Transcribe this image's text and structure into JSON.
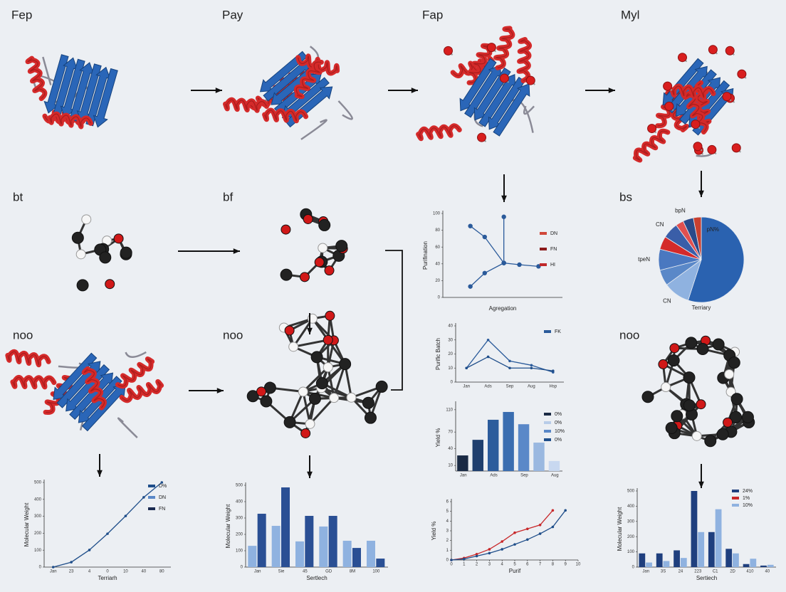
{
  "panels": [
    {
      "label": "Fep"
    },
    {
      "label": "Pay"
    },
    {
      "label": "Fap"
    },
    {
      "label": "Myl"
    },
    {
      "label": "bt"
    },
    {
      "label": "bf"
    },
    {
      "label": "bs"
    },
    {
      "label": "noo"
    },
    {
      "label": "noo"
    },
    {
      "label": "noo"
    }
  ],
  "charts": [
    {
      "type": "line",
      "y_label": "Purifination",
      "x_label": "Agregation",
      "xlim": [
        0,
        10
      ],
      "ylim": [
        0,
        100
      ],
      "yticks": [
        0,
        20,
        40,
        60,
        80,
        100
      ],
      "series": [
        {
          "name": "DN",
          "color": "#2a5a9a",
          "legend_color": "#d0473a",
          "x": [
            2.3,
            3.5,
            5.1,
            6.4,
            8.0
          ],
          "values": [
            85,
            72,
            41,
            39,
            37
          ]
        },
        {
          "name": "FN",
          "color": "#2a5a9a",
          "legend_color": "#8b1a1a",
          "x": [
            2.3,
            3.5,
            5.1
          ],
          "values": [
            13,
            29,
            41
          ]
        },
        {
          "name": "HI",
          "color": "#2a5a9a",
          "legend_color": "#c0282a",
          "x": [
            5.1,
            5.1
          ],
          "values": [
            96,
            41
          ]
        }
      ]
    },
    {
      "type": "line",
      "y_label": "Purific Batch",
      "categories": [
        "Jan",
        "Ads",
        "Sep",
        "Aug",
        "Hsp"
      ],
      "ylim": [
        0,
        40
      ],
      "yticks": [
        0,
        10,
        20,
        30,
        40
      ],
      "series": [
        {
          "name": "FK",
          "color": "#2a5a9a",
          "values": [
            10,
            30,
            15,
            12,
            7
          ]
        },
        {
          "color": "#1f4e8a",
          "values": [
            10,
            18,
            10,
            10,
            8
          ]
        }
      ]
    },
    {
      "type": "bar",
      "y_label": "Yield %",
      "categories": [
        "Jan",
        null,
        "Ads",
        null,
        "Sep",
        null,
        "Aug"
      ],
      "ylim": [
        0,
        120
      ],
      "yticks": [
        10,
        40,
        70,
        110
      ],
      "series": [
        {
          "values": [
            28,
            56,
            92,
            106,
            84,
            51,
            18
          ],
          "colors": [
            "#1a2a44",
            "#1f3f6e",
            "#2c5c9c",
            "#3a6db0",
            "#5a88c8",
            "#9ab8e0",
            "#c8d8f0"
          ]
        }
      ],
      "legend": [
        {
          "name": "0%",
          "color": "#1a2a44"
        },
        {
          "name": "0%",
          "color": "#b8cce8"
        },
        {
          "name": "10%",
          "color": "#5a88c8"
        },
        {
          "name": "0%",
          "color": "#1f4e8a"
        }
      ]
    },
    {
      "type": "line",
      "y_label": "Yield %",
      "x_label": "Purif",
      "xlim": [
        0,
        10
      ],
      "xticks": [
        0,
        1,
        2,
        3,
        4,
        5,
        6,
        7,
        8,
        9,
        10
      ],
      "ylim": [
        0,
        6
      ],
      "yticks": [
        0,
        1,
        2,
        3,
        4,
        5,
        6
      ],
      "series": [
        {
          "color": "#c8282a",
          "x": [
            0,
            1,
            2,
            3,
            4,
            5,
            6,
            7,
            8
          ],
          "values": [
            0,
            0.2,
            0.6,
            1.1,
            1.9,
            2.8,
            3.2,
            3.6,
            5.1
          ]
        },
        {
          "color": "#1f4e8a",
          "x": [
            0,
            1,
            2,
            3,
            4,
            5,
            6,
            7,
            8,
            9
          ],
          "values": [
            0,
            0.1,
            0.4,
            0.7,
            1.1,
            1.6,
            2.1,
            2.7,
            3.4,
            5.1
          ]
        }
      ]
    },
    {
      "type": "pie",
      "title": "Terriary",
      "categories": [
        "pN%",
        "CN",
        null,
        "tpeN",
        null,
        "CN",
        null,
        "bpN",
        null
      ],
      "values": [
        55,
        10,
        6,
        8,
        5,
        6,
        3,
        4,
        3
      ],
      "colors": [
        "#2a62b0",
        "#8fb2e0",
        "#5a88c8",
        "#4a78c0",
        "#d42a2a",
        "#3a5ea8",
        "#e05050",
        "#2a4a8a",
        "#c84030"
      ]
    },
    {
      "type": "line",
      "y_label": "Molecular Weight",
      "x_label": "Terriarh",
      "categories": [
        "Jan",
        "23",
        "4",
        "0",
        "10",
        "40",
        "80"
      ],
      "ylim": [
        0,
        500
      ],
      "yticks": [
        0,
        100,
        200,
        300,
        400,
        500
      ],
      "series": [
        {
          "color": "#1f4e8a",
          "values": [
            0,
            29,
            101,
            197,
            302,
            412,
            500
          ]
        }
      ],
      "legend": [
        {
          "name": "D%",
          "color": "#1f4e8a"
        },
        {
          "name": "DN",
          "color": "#5a88c8"
        },
        {
          "name": "FN",
          "color": "#1a2a50"
        }
      ]
    },
    {
      "type": "bar",
      "y_label": "Molecular Weight",
      "x_label": "Sertlech",
      "categories": [
        "Jan",
        "Sie",
        "45",
        "GD",
        "8M",
        "100"
      ],
      "ylim": [
        0,
        500
      ],
      "yticks": [
        0,
        100,
        200,
        300,
        400,
        500
      ],
      "series": [
        {
          "color": "#8fb2e0",
          "values": [
            130,
            252,
            157,
            248,
            161,
            161
          ]
        },
        {
          "color": "#2a4f94",
          "values": [
            326,
            487,
            313,
            313,
            117,
            52
          ]
        }
      ]
    },
    {
      "type": "bar",
      "y_label": "Molecular Weight",
      "x_label": "Sertiech",
      "categories": [
        "Jan",
        "3S",
        "24",
        "223",
        "C1",
        "2D",
        "410",
        "40"
      ],
      "ylim": [
        0,
        500
      ],
      "yticks": [
        0,
        100,
        200,
        300,
        400,
        500
      ],
      "series": [
        {
          "color": "#1f3f7e",
          "values": [
            90,
            90,
            110,
            500,
            230,
            120,
            20,
            10
          ]
        },
        {
          "color": "#8fb2e0",
          "values": [
            30,
            40,
            60,
            230,
            380,
            90,
            55,
            15
          ]
        }
      ],
      "legend": [
        {
          "name": "24%",
          "color": "#1f3f7e"
        },
        {
          "name": "1%",
          "color": "#c8282a"
        },
        {
          "name": "10%",
          "color": "#8fb2e0"
        }
      ]
    }
  ]
}
